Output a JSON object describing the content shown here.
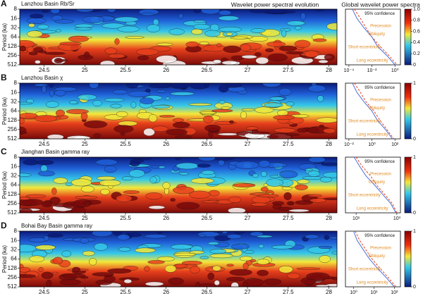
{
  "header": {
    "left_title": "Wavelet power spectral evolution",
    "right_title": "Global wavelet power spectra"
  },
  "chart_data": [
    {
      "type": "wavelet",
      "label": "A",
      "title": "Lanzhou Basin Rb/Sr",
      "ylabel": "Period (ka)",
      "xlim": [
        24.2,
        28.1
      ],
      "xticks": [
        24.5,
        25.0,
        25.5,
        26.0,
        26.5,
        27.0,
        27.5,
        28.0
      ],
      "ylim": [
        8,
        512
      ],
      "yticks": [
        8,
        16,
        32,
        64,
        128,
        256,
        512
      ],
      "spectrum": {
        "periods": [
          8,
          16,
          32,
          64,
          128,
          256,
          512
        ],
        "power": [
          0.0002,
          0.0005,
          0.002,
          0.01,
          0.03,
          0.2,
          1
        ],
        "confidence": [
          0.0003,
          0.001,
          0.003,
          0.01,
          0.05,
          0.3,
          1.5
        ],
        "xlim": [
          5e-05,
          3
        ],
        "xticks": [
          {
            "value": 0.0001,
            "label": "10⁻⁴"
          },
          {
            "value": 0.01,
            "label": "10⁻²"
          },
          {
            "value": 1,
            "label": "10⁰"
          }
        ],
        "annotations": [
          "95% confidence",
          "Precession",
          "Obliquity",
          "Short eccentricity",
          "Long eccentricity"
        ]
      },
      "colorbar": {
        "ticks": [
          0,
          0.2,
          0.4,
          0.6,
          0.8,
          {
            "value": 1,
            "label": "1.0"
          }
        ]
      }
    },
    {
      "type": "wavelet",
      "label": "B",
      "title": "Lanzhou Basin χ",
      "ylabel": "Period (ka)",
      "xlim": [
        24.2,
        28.1
      ],
      "xticks": [
        24.5,
        25.0,
        25.5,
        26.0,
        26.5,
        27.0,
        27.5,
        28.0
      ],
      "ylim": [
        8,
        512
      ],
      "yticks": [
        8,
        16,
        32,
        64,
        128,
        256,
        512
      ],
      "spectrum": {
        "periods": [
          8,
          16,
          32,
          64,
          128,
          256,
          512
        ],
        "power": [
          0.02,
          0.05,
          0.2,
          1,
          3,
          15,
          60
        ],
        "confidence": [
          0.03,
          0.1,
          0.3,
          1.5,
          5,
          20,
          80
        ],
        "xlim": [
          0.005,
          300
        ],
        "xticks": [
          {
            "value": 0.01,
            "label": "10⁻²"
          },
          {
            "value": 1,
            "label": "10⁰"
          },
          {
            "value": 100,
            "label": "10²"
          }
        ],
        "annotations": [
          "95% confidence",
          "Precession",
          "Obliquity",
          "Short eccentricity",
          "Long eccentricity"
        ]
      },
      "colorbar": {
        "ticks": [
          0,
          1
        ]
      }
    },
    {
      "type": "wavelet",
      "label": "C",
      "title": "Jianghan Basin gamma ray",
      "ylabel": "Period (ka)",
      "xlim": [
        24.2,
        28.1
      ],
      "xticks": [
        24.5,
        25.0,
        25.5,
        26.0,
        26.5,
        27.0,
        27.5,
        28.0
      ],
      "ylim": [
        8,
        512
      ],
      "yticks": [
        8,
        16,
        32,
        64,
        128,
        256,
        512
      ],
      "spectrum": {
        "periods": [
          8,
          16,
          32,
          64,
          128,
          256,
          512
        ],
        "power": [
          8,
          15,
          30,
          80,
          200,
          500,
          900
        ],
        "confidence": [
          10,
          20,
          50,
          100,
          250,
          600,
          1000
        ],
        "xlim": [
          3,
          1500
        ],
        "xticks": [
          {
            "value": 10,
            "label": "10¹"
          },
          {
            "value": 1000,
            "label": "10³"
          }
        ],
        "annotations": [
          "95% confidence",
          "Precession",
          "Obliquity",
          "Short eccentricity",
          "Long eccentricity"
        ]
      },
      "colorbar": {
        "ticks": [
          0,
          1
        ]
      }
    },
    {
      "type": "wavelet",
      "label": "D",
      "title": "Bohai Bay Basin gamma ray",
      "ylabel": "Period (ka)",
      "xlim": [
        24.2,
        28.1
      ],
      "xticks": [
        24.5,
        25.0,
        25.5,
        26.0,
        26.5,
        27.0,
        27.5,
        28.0
      ],
      "ylim": [
        8,
        512
      ],
      "yticks": [
        8,
        16,
        32,
        64,
        128,
        256,
        512
      ],
      "spectrum": {
        "periods": [
          8,
          16,
          32,
          64,
          128,
          256,
          512
        ],
        "power": [
          1,
          1.5,
          3,
          6,
          15,
          40,
          100
        ],
        "confidence": [
          1.2,
          2,
          4,
          8,
          20,
          50,
          120
        ],
        "xlim": [
          0.4,
          200
        ],
        "xticks": [
          {
            "value": 1,
            "label": "10⁰"
          },
          {
            "value": 10,
            "label": "10¹"
          },
          {
            "value": 100,
            "label": "10²"
          }
        ],
        "annotations": [
          "95% confidence",
          "Precession",
          "Obliquity",
          "Short eccentricity",
          "Long eccentricity"
        ]
      },
      "colorbar": {
        "ticks": [
          0,
          1
        ]
      }
    }
  ]
}
